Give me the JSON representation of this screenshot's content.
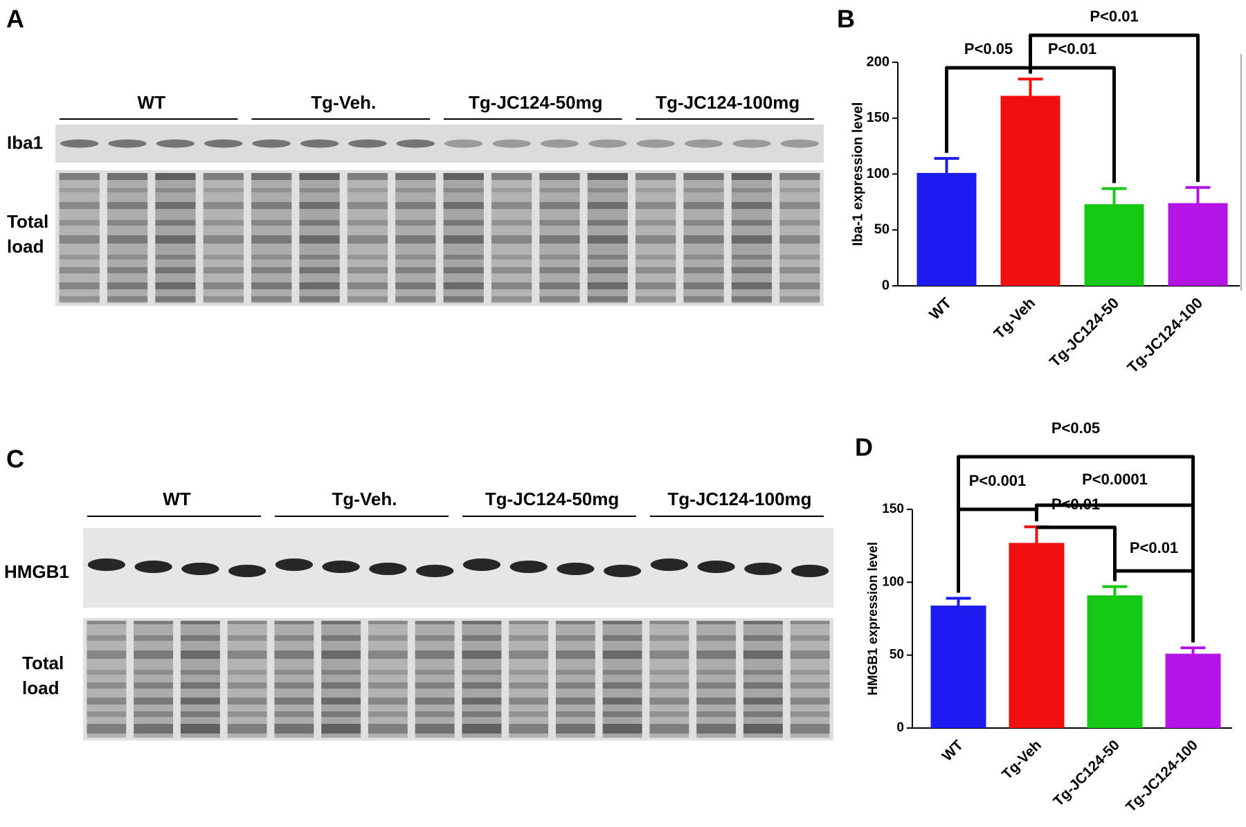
{
  "blots": [
    {
      "panel_label": "A",
      "groups": [
        "WT",
        "Tg-Veh.",
        "Tg-JC124-50mg",
        "Tg-JC124-100mg"
      ],
      "protein_label": "Iba1",
      "load_label_lines": [
        "Total",
        "load"
      ]
    },
    {
      "panel_label": "C",
      "groups": [
        "WT",
        "Tg-Veh.",
        "Tg-JC124-50mg",
        "Tg-JC124-100mg"
      ],
      "protein_label": "HMGB1",
      "load_label_lines": [
        "Total",
        "load"
      ]
    }
  ],
  "chart_data": [
    {
      "type": "bar",
      "panel_label": "B",
      "ylabel": "Iba-1 expression level",
      "categories": [
        "WT",
        "Tg-Veh",
        "Tg-JC124-50",
        "Tg-JC124-100"
      ],
      "values": [
        101,
        170,
        73,
        74
      ],
      "errors": [
        13,
        15,
        14,
        14
      ],
      "colors": [
        "#1c1cf0",
        "#f01010",
        "#14c814",
        "#b414e6"
      ],
      "ylim": [
        0,
        200
      ],
      "yticks": [
        0,
        50,
        100,
        150,
        200
      ],
      "comparisons": [
        {
          "pair": [
            "WT",
            "Tg-Veh"
          ],
          "label": "P<0.05"
        },
        {
          "pair": [
            "Tg-Veh",
            "Tg-JC124-50"
          ],
          "label": "P<0.01"
        },
        {
          "pair": [
            "Tg-Veh",
            "Tg-JC124-100"
          ],
          "label": "P<0.01"
        }
      ]
    },
    {
      "type": "bar",
      "panel_label": "D",
      "ylabel": "HMGB1 expression level",
      "categories": [
        "WT",
        "Tg-Veh",
        "Tg-JC124-50",
        "Tg-JC124-100"
      ],
      "values": [
        84,
        127,
        91,
        51
      ],
      "errors": [
        5,
        11,
        6,
        4
      ],
      "colors": [
        "#1c1cf0",
        "#f01010",
        "#14c814",
        "#b414e6"
      ],
      "ylim": [
        0,
        150
      ],
      "yticks": [
        0,
        50,
        100,
        150
      ],
      "comparisons": [
        {
          "pair": [
            "WT",
            "Tg-JC124-100"
          ],
          "label": "P<0.05"
        },
        {
          "pair": [
            "WT",
            "Tg-Veh"
          ],
          "label": "P<0.001"
        },
        {
          "pair": [
            "Tg-Veh",
            "Tg-JC124-100"
          ],
          "label": "P<0.0001"
        },
        {
          "pair": [
            "Tg-Veh",
            "Tg-JC124-50"
          ],
          "label": "P<0.01"
        },
        {
          "pair": [
            "Tg-JC124-50",
            "Tg-JC124-100"
          ],
          "label": "P<0.01"
        }
      ]
    }
  ]
}
